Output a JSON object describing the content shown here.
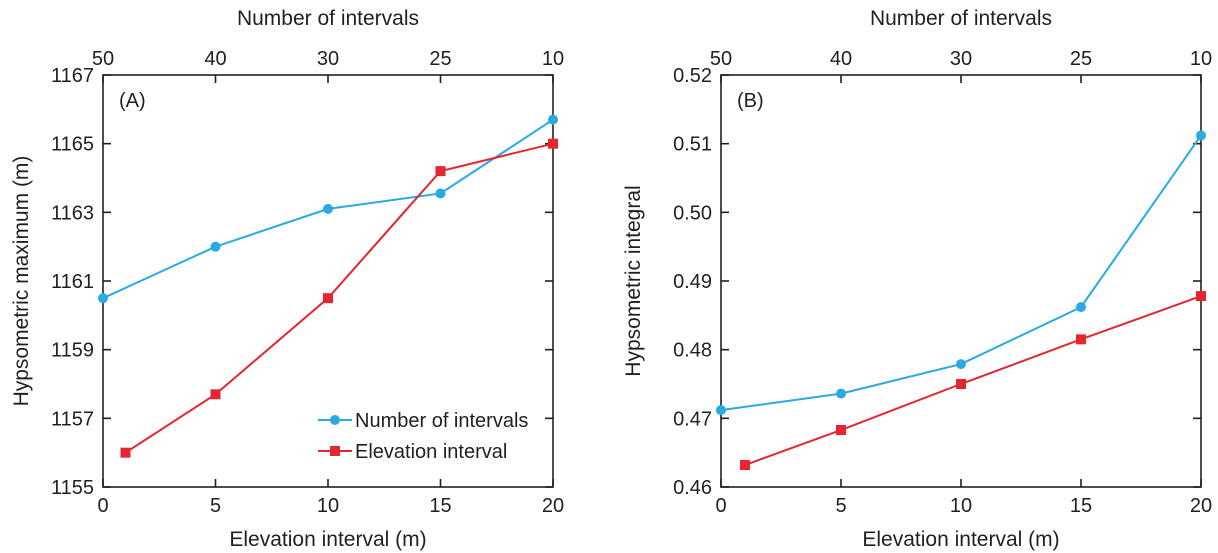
{
  "chart_data": [
    {
      "type": "line",
      "panel_label": "(A)",
      "xlabel": "Elevation interval (m)",
      "x2label": "Number of intervals",
      "ylabel": "Hypsometric maximum (m)",
      "xlim": [
        0,
        20
      ],
      "ylim": [
        1155,
        1167
      ],
      "xticks": [
        0,
        5,
        10,
        15,
        20
      ],
      "x2ticks": [
        {
          "at": 0,
          "label": "50"
        },
        {
          "at": 5,
          "label": "40"
        },
        {
          "at": 10,
          "label": "30"
        },
        {
          "at": 15,
          "label": "25"
        },
        {
          "at": 20,
          "label": "10"
        }
      ],
      "yticks": [
        1155,
        1157,
        1159,
        1161,
        1163,
        1165,
        1167
      ],
      "legend": "bottom-right",
      "series": [
        {
          "name": "Number of intervals",
          "color": "#29abe2",
          "marker": "circle",
          "x": [
            0,
            5,
            10,
            15,
            20
          ],
          "y": [
            1160.5,
            1162.0,
            1163.1,
            1163.55,
            1165.7
          ]
        },
        {
          "name": "Elevation interval",
          "color": "#e3262f",
          "marker": "square",
          "x": [
            1,
            5,
            10,
            15,
            20
          ],
          "y": [
            1156.0,
            1157.7,
            1160.5,
            1164.2,
            1165.0
          ]
        }
      ]
    },
    {
      "type": "line",
      "panel_label": "(B)",
      "xlabel": "Elevation interval (m)",
      "x2label": "Number of intervals",
      "ylabel": "Hypsometric integral",
      "xlim": [
        0,
        20
      ],
      "ylim": [
        0.46,
        0.52
      ],
      "xticks": [
        0,
        5,
        10,
        15,
        20
      ],
      "x2ticks": [
        {
          "at": 0,
          "label": "50"
        },
        {
          "at": 5,
          "label": "40"
        },
        {
          "at": 10,
          "label": "30"
        },
        {
          "at": 15,
          "label": "25"
        },
        {
          "at": 20,
          "label": "10"
        }
      ],
      "yticks": [
        0.46,
        0.47,
        0.48,
        0.49,
        0.5,
        0.51,
        0.52
      ],
      "ytick_labels": [
        "0.46",
        "0.47",
        "0.48",
        "0.49",
        "0.50",
        "0.51",
        "0.52"
      ],
      "series": [
        {
          "name": "Number of intervals",
          "color": "#29abe2",
          "marker": "circle",
          "x": [
            0,
            5,
            10,
            15,
            20
          ],
          "y": [
            0.4712,
            0.4736,
            0.4779,
            0.4862,
            0.5112
          ]
        },
        {
          "name": "Elevation interval",
          "color": "#e3262f",
          "marker": "square",
          "x": [
            1,
            5,
            10,
            15,
            20
          ],
          "y": [
            0.4632,
            0.4683,
            0.475,
            0.4815,
            0.4878
          ]
        }
      ]
    }
  ]
}
